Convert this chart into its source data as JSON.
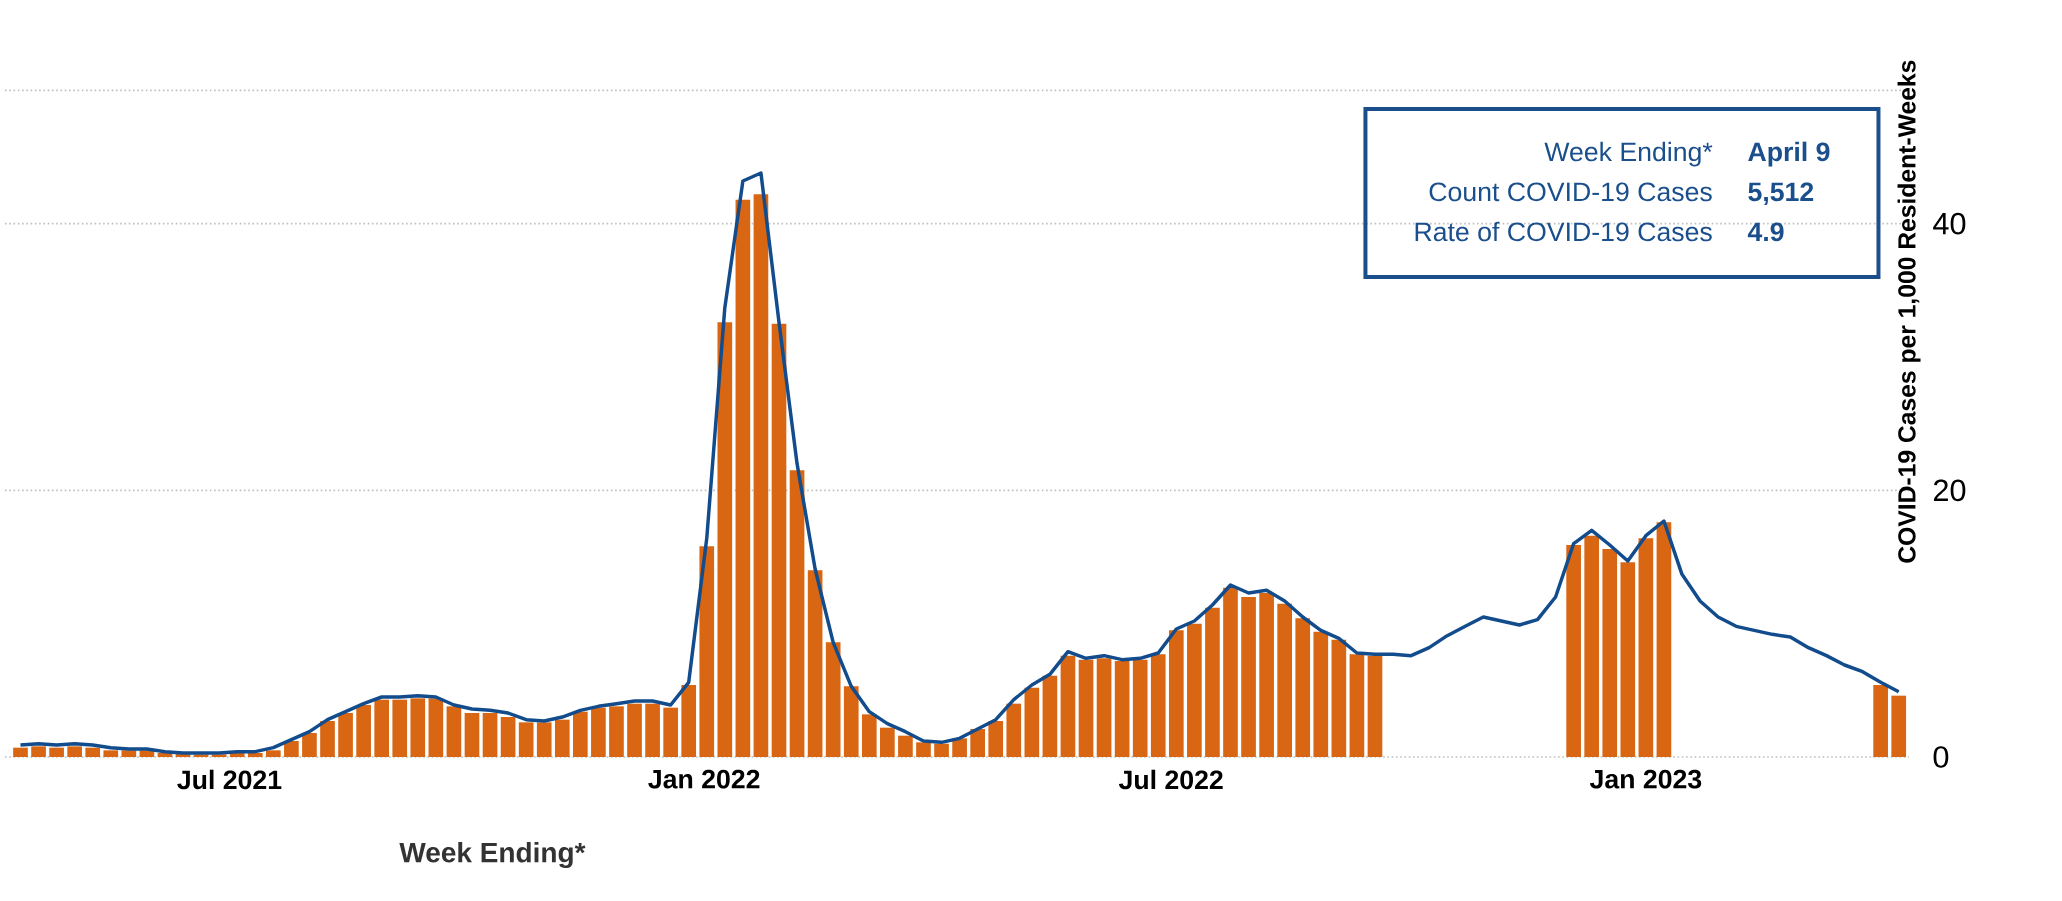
{
  "chart_data": {
    "type": "bar",
    "xlabel": "Week Ending*",
    "ylabel": "COVID-19 Cases per 1,000 Resident-Weeks",
    "x": [
      "2021-04-11",
      "2021-04-18",
      "2021-04-25",
      "2021-05-02",
      "2021-05-09",
      "2021-05-16",
      "2021-05-23",
      "2021-05-30",
      "2021-06-06",
      "2021-06-13",
      "2021-06-20",
      "2021-06-27",
      "2021-07-04",
      "2021-07-11",
      "2021-07-18",
      "2021-07-25",
      "2021-08-01",
      "2021-08-08",
      "2021-08-15",
      "2021-08-22",
      "2021-08-29",
      "2021-09-05",
      "2021-09-12",
      "2021-09-19",
      "2021-09-26",
      "2021-10-03",
      "2021-10-10",
      "2021-10-17",
      "2021-10-24",
      "2021-10-31",
      "2021-11-07",
      "2021-11-14",
      "2021-11-21",
      "2021-11-28",
      "2021-12-05",
      "2021-12-12",
      "2021-12-19",
      "2021-12-26",
      "2022-01-02",
      "2022-01-09",
      "2022-01-16",
      "2022-01-23",
      "2022-01-30",
      "2022-02-06",
      "2022-02-13",
      "2022-02-20",
      "2022-02-27",
      "2022-03-06",
      "2022-03-13",
      "2022-03-20",
      "2022-03-27",
      "2022-04-03",
      "2022-04-10",
      "2022-04-17",
      "2022-04-24",
      "2022-05-01",
      "2022-05-08",
      "2022-05-15",
      "2022-05-22",
      "2022-05-29",
      "2022-06-05",
      "2022-06-12",
      "2022-06-19",
      "2022-06-26",
      "2022-07-03",
      "2022-07-10",
      "2022-07-17",
      "2022-07-24",
      "2022-07-31",
      "2022-08-07",
      "2022-08-14",
      "2022-08-21",
      "2022-08-28",
      "2022-09-04",
      "2022-09-11",
      "2022-09-18",
      "2022-09-25",
      "2022-10-02",
      "2022-10-09",
      "2022-10-16",
      "2022-10-23",
      "2022-10-30",
      "2022-11-06",
      "2022-11-13",
      "2022-11-20",
      "2022-11-27",
      "2022-12-04",
      "2022-12-11",
      "2022-12-18",
      "2022-12-25",
      "2023-01-01",
      "2023-01-08",
      "2023-01-15",
      "2023-01-22",
      "2023-01-29",
      "2023-02-05",
      "2023-02-12",
      "2023-02-19",
      "2023-02-26",
      "2023-03-05",
      "2023-03-12",
      "2023-03-19",
      "2023-03-26",
      "2023-04-02",
      "2023-04-09"
    ],
    "xlim": [
      "2021-04-05",
      "2023-04-13"
    ],
    "xticks": [
      {
        "value": "2021-07-01",
        "label": "Jul 2021"
      },
      {
        "value": "2022-01-01",
        "label": "Jan 2022"
      },
      {
        "value": "2022-07-01",
        "label": "Jul 2022"
      },
      {
        "value": "2023-01-01",
        "label": "Jan 2023"
      }
    ],
    "ylim": [
      0,
      50
    ],
    "yticks": [
      0,
      20,
      40,
      {
        "value": 50,
        "label": null
      }
    ],
    "grid": "y",
    "series": [
      {
        "color": "#d86613",
        "values": [
          0.7,
          0.8,
          0.7,
          0.8,
          0.7,
          0.5,
          0.5,
          0.5,
          0.3,
          0.3,
          0.2,
          0.2,
          0.3,
          0.3,
          0.5,
          1.2,
          1.8,
          2.7,
          3.3,
          3.9,
          4.3,
          4.3,
          4.4,
          4.4,
          3.8,
          3.3,
          3.3,
          3.0,
          2.6,
          2.6,
          2.8,
          3.4,
          3.7,
          3.8,
          4.0,
          4.0,
          3.7,
          5.4,
          15.8,
          32.6,
          41.8,
          42.2,
          32.5,
          21.5,
          14.0,
          8.6,
          5.3,
          3.2,
          2.2,
          1.6,
          1.1,
          1.0,
          1.4,
          2.1,
          2.7,
          4.0,
          5.2,
          6.1,
          7.6,
          7.3,
          7.4,
          7.2,
          7.3,
          7.7,
          9.5,
          10.0,
          11.2,
          12.7,
          12.0,
          12.3,
          11.5,
          10.4,
          9.4,
          8.8,
          7.7,
          7.6,
          null,
          null,
          null,
          null,
          null,
          null,
          null,
          null,
          null,
          null,
          15.9,
          16.6,
          15.6,
          14.6,
          16.4,
          17.6,
          null,
          null,
          null,
          null,
          null,
          null,
          null,
          null,
          null,
          null,
          null,
          5.4,
          4.6
        ]
      },
      {
        "type": "line",
        "color": "#124c8c",
        "values": [
          0.9,
          1.0,
          0.9,
          1.0,
          0.9,
          0.7,
          0.6,
          0.6,
          0.4,
          0.3,
          0.3,
          0.3,
          0.4,
          0.4,
          0.7,
          1.3,
          1.9,
          2.8,
          3.4,
          4.0,
          4.5,
          4.5,
          4.6,
          4.5,
          3.9,
          3.6,
          3.5,
          3.3,
          2.8,
          2.7,
          3.0,
          3.5,
          3.8,
          4.0,
          4.2,
          4.2,
          3.9,
          5.6,
          16.4,
          33.7,
          43.2,
          43.8,
          32.6,
          22.0,
          14.1,
          8.6,
          5.3,
          3.4,
          2.5,
          1.9,
          1.2,
          1.1,
          1.4,
          2.1,
          2.8,
          4.3,
          5.4,
          6.2,
          7.9,
          7.4,
          7.6,
          7.3,
          7.4,
          7.8,
          9.6,
          10.2,
          11.4,
          12.9,
          12.3,
          12.5,
          11.7,
          10.5,
          9.5,
          8.9,
          7.8,
          7.7,
          7.7,
          7.6,
          8.2,
          9.1,
          9.8,
          10.5,
          10.2,
          9.9,
          10.3,
          12.0,
          16.0,
          17.0,
          15.9,
          14.7,
          16.6,
          17.7,
          13.7,
          11.7,
          10.5,
          9.8,
          9.5,
          9.2,
          9.0,
          8.2,
          7.6,
          6.9,
          6.4,
          5.6,
          4.9
        ]
      }
    ],
    "annotations": [
      "Week Ending*",
      "April 9",
      "Count COVID-19 Cases",
      "5,512",
      "Rate of COVID-19 Cases",
      "4.9"
    ]
  }
}
